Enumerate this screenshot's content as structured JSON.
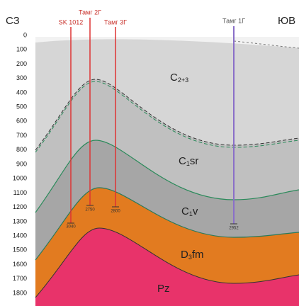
{
  "header": {
    "left": "СЗ",
    "right": "ЮВ"
  },
  "axis": {
    "ticks": [
      0,
      100,
      200,
      300,
      400,
      500,
      600,
      700,
      800,
      900,
      1000,
      1100,
      1200,
      1300,
      1400,
      1500,
      1600,
      1700,
      1800
    ]
  },
  "wells": [
    {
      "name": "SK 1012",
      "depth": 3040
    },
    {
      "name": "Тамг 2Г",
      "depth": 2750
    },
    {
      "name": "Тамг 3Г",
      "depth": 2800
    },
    {
      "name": "Тамг 1Г",
      "depth": 2952
    }
  ],
  "layers": [
    {
      "symbol": "C",
      "index": "2+3"
    },
    {
      "symbol": "C",
      "index": "1",
      "suffix": "sr"
    },
    {
      "symbol": "C",
      "index": "1",
      "suffix": "v"
    },
    {
      "symbol": "D",
      "index": "3",
      "suffix": "fm"
    },
    {
      "symbol": "Pz"
    }
  ]
}
